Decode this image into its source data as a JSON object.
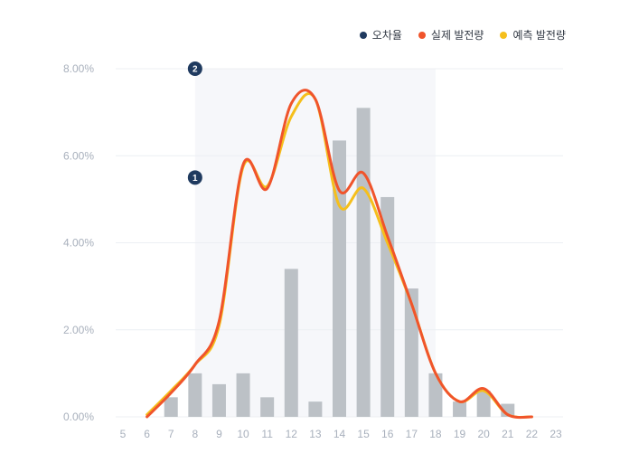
{
  "colors": {
    "error": "#1f3a5f",
    "actual": "#f0542b",
    "forecast": "#f5bf1c",
    "bar": "#bcc1c6",
    "band": "#eef1f5",
    "grid": "#eceff3"
  },
  "legend": [
    {
      "label": "오차율",
      "color_key": "error"
    },
    {
      "label": "실제 발전량",
      "color_key": "actual"
    },
    {
      "label": "예측 발전량",
      "color_key": "forecast"
    }
  ],
  "markers": [
    {
      "label": "1",
      "x": 8,
      "y": 5.5
    },
    {
      "label": "2",
      "x": 8,
      "y": 8.0
    }
  ],
  "chart_data": {
    "type": "bar",
    "xlim": [
      5,
      23
    ],
    "ylim": [
      0,
      8
    ],
    "y_ticks": [
      "0.00%",
      "2.00%",
      "4.00%",
      "6.00%",
      "8.00%"
    ],
    "x_ticks": [
      "5",
      "6",
      "7",
      "8",
      "9",
      "10",
      "11",
      "12",
      "13",
      "14",
      "15",
      "16",
      "17",
      "18",
      "19",
      "20",
      "21",
      "22",
      "23"
    ],
    "shaded_band": {
      "x_from": 8,
      "x_to": 18
    },
    "series": [
      {
        "name": "오차율",
        "kind": "bar",
        "x": [
          7,
          8,
          9,
          10,
          11,
          12,
          13,
          14,
          15,
          16,
          17,
          18,
          19,
          20,
          21
        ],
        "values": [
          0.45,
          1.0,
          0.75,
          1.0,
          0.45,
          3.4,
          0.35,
          6.35,
          7.1,
          5.05,
          2.95,
          1.0,
          0.35,
          0.6,
          0.3
        ]
      },
      {
        "name": "실제 발전량",
        "kind": "line",
        "x": [
          6,
          7,
          8,
          9,
          10,
          11,
          12,
          13,
          14,
          15,
          16,
          17,
          18,
          19,
          20,
          21,
          22
        ],
        "values": [
          0.0,
          0.55,
          1.2,
          2.2,
          5.8,
          5.25,
          7.2,
          7.3,
          5.2,
          5.6,
          4.15,
          2.6,
          1.0,
          0.35,
          0.65,
          0.05,
          0.0
        ]
      },
      {
        "name": "예측 발전량",
        "kind": "line",
        "x": [
          6,
          7,
          8,
          9,
          10,
          11,
          12,
          13,
          14,
          15,
          16,
          17,
          18,
          19,
          20,
          21,
          22
        ],
        "values": [
          0.05,
          0.6,
          1.2,
          2.1,
          5.75,
          5.3,
          6.9,
          7.3,
          4.85,
          5.25,
          4.0,
          2.6,
          1.0,
          0.35,
          0.6,
          0.05,
          0.0
        ]
      }
    ]
  }
}
